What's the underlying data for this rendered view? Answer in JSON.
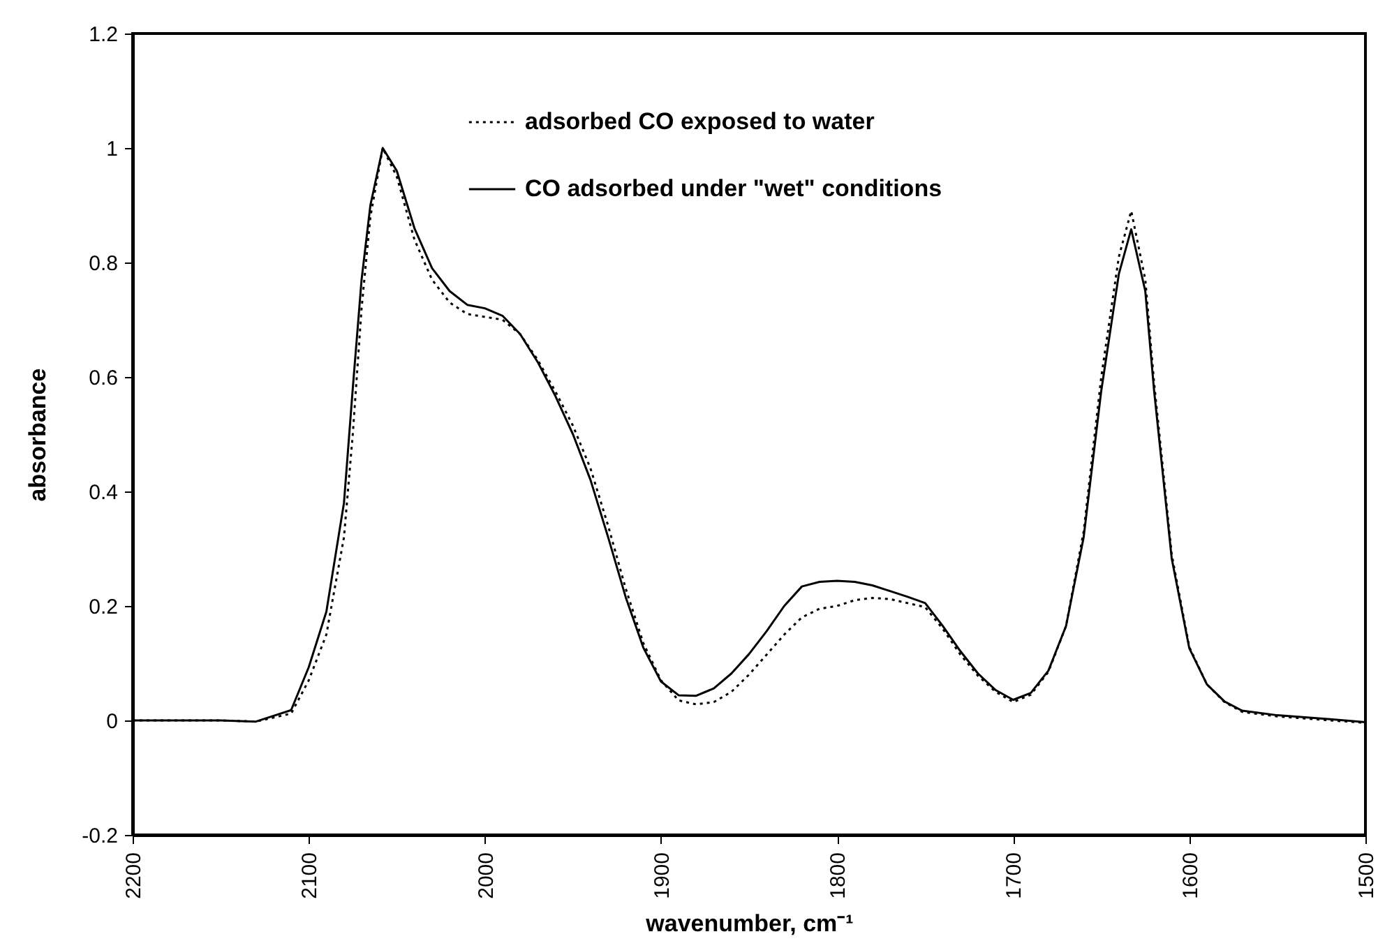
{
  "chart_data": {
    "type": "line",
    "xlabel": "wavenumber, cm⁻¹",
    "ylabel": "absorbance",
    "x": [
      2200,
      2150,
      2130,
      2110,
      2100,
      2090,
      2080,
      2075,
      2070,
      2065,
      2058,
      2050,
      2040,
      2030,
      2020,
      2010,
      2000,
      1990,
      1980,
      1970,
      1960,
      1950,
      1940,
      1930,
      1920,
      1910,
      1900,
      1890,
      1880,
      1870,
      1860,
      1850,
      1840,
      1830,
      1820,
      1810,
      1800,
      1790,
      1780,
      1770,
      1760,
      1750,
      1740,
      1730,
      1720,
      1710,
      1700,
      1690,
      1680,
      1670,
      1660,
      1650,
      1640,
      1633,
      1625,
      1620,
      1610,
      1600,
      1590,
      1580,
      1570,
      1550,
      1520,
      1500
    ],
    "series": [
      {
        "name": "adsorbed CO exposed to water",
        "color": "#000000",
        "line_style": "dotted",
        "values": [
          0,
          0,
          -0.002,
          0.012,
          0.07,
          0.15,
          0.32,
          0.5,
          0.72,
          0.88,
          1.0,
          0.95,
          0.84,
          0.77,
          0.73,
          0.71,
          0.705,
          0.7,
          0.675,
          0.63,
          0.575,
          0.515,
          0.44,
          0.34,
          0.23,
          0.135,
          0.07,
          0.035,
          0.028,
          0.032,
          0.05,
          0.08,
          0.115,
          0.15,
          0.18,
          0.195,
          0.2,
          0.21,
          0.214,
          0.212,
          0.205,
          0.198,
          0.16,
          0.115,
          0.078,
          0.05,
          0.032,
          0.045,
          0.085,
          0.165,
          0.33,
          0.6,
          0.81,
          0.89,
          0.77,
          0.59,
          0.29,
          0.128,
          0.063,
          0.032,
          0.015,
          0.007,
          0,
          -0.004
        ]
      },
      {
        "name": "CO adsorbed under \"wet\" conditions",
        "color": "#000000",
        "line_style": "solid",
        "values": [
          0,
          0,
          -0.002,
          0.018,
          0.093,
          0.19,
          0.38,
          0.58,
          0.77,
          0.9,
          1.0,
          0.96,
          0.86,
          0.79,
          0.75,
          0.726,
          0.72,
          0.707,
          0.675,
          0.626,
          0.567,
          0.5,
          0.42,
          0.32,
          0.215,
          0.127,
          0.068,
          0.044,
          0.043,
          0.056,
          0.082,
          0.116,
          0.156,
          0.2,
          0.234,
          0.242,
          0.244,
          0.242,
          0.236,
          0.226,
          0.216,
          0.205,
          0.165,
          0.121,
          0.082,
          0.053,
          0.036,
          0.048,
          0.087,
          0.165,
          0.32,
          0.576,
          0.78,
          0.858,
          0.75,
          0.576,
          0.283,
          0.126,
          0.063,
          0.033,
          0.017,
          0.009,
          0.002,
          -0.003
        ]
      }
    ],
    "xlim": [
      2200,
      1500
    ],
    "xticks": [
      2200,
      2100,
      2000,
      1900,
      1800,
      1700,
      1600,
      1500
    ],
    "ylim": [
      -0.2,
      1.2
    ],
    "yticks": [
      -0.2,
      0,
      0.2,
      0.4,
      0.6,
      0.8,
      1,
      1.2
    ],
    "grid": false,
    "legend": "top",
    "marker": "none"
  }
}
